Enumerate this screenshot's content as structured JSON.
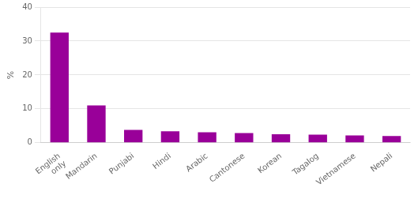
{
  "chart_data": {
    "type": "bar",
    "categories": [
      "English\nonly",
      "Mandarin",
      "Punjabi",
      "Hindi",
      "Arabic",
      "Cantonese",
      "Korean",
      "Tagalog",
      "Vietnamese",
      "Nepali"
    ],
    "values": [
      32.5,
      11.0,
      3.8,
      3.4,
      3.1,
      2.9,
      2.5,
      2.4,
      2.2,
      2.0
    ],
    "color": "#990099",
    "ylabel": "%",
    "ylim": [
      0,
      40
    ],
    "yticks": [
      0,
      10,
      20,
      30,
      40
    ],
    "grid": true
  }
}
